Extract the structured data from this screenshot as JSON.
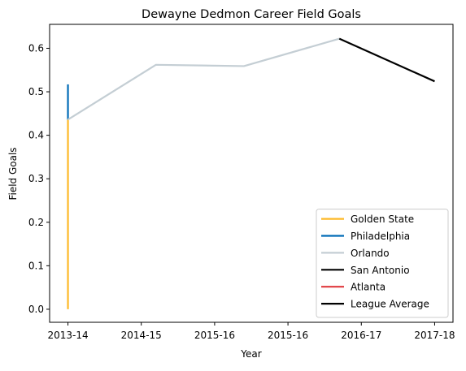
{
  "chart_data": {
    "type": "line",
    "title": "Dewayne Dedmon Career Field Goals",
    "xlabel": "Year",
    "ylabel": "Field Goals",
    "x_ticks": [
      "2013-14",
      "2014-15",
      "2015-16",
      "2015-16",
      "2016-17",
      "2017-18"
    ],
    "y_ticks": [
      "0.0",
      "0.1",
      "0.2",
      "0.3",
      "0.4",
      "0.5",
      "0.6"
    ],
    "xlim": [
      -0.25,
      5.25
    ],
    "ylim": [
      -0.03,
      0.655
    ],
    "grid": false,
    "legend_position": "lower-right",
    "series": [
      {
        "name": "Golden State",
        "color": "#FDB927",
        "points": [
          [
            0,
            0.0
          ],
          [
            0,
            0.436
          ]
        ]
      },
      {
        "name": "Philadelphia",
        "color": "#006BB6",
        "points": [
          [
            0,
            0.436
          ],
          [
            0,
            0.517
          ]
        ]
      },
      {
        "name": "Orlando",
        "color": "#C4CED4",
        "points": [
          [
            0,
            0.436
          ],
          [
            1.2,
            0.562
          ],
          [
            2.4,
            0.559
          ],
          [
            3.7,
            0.622
          ]
        ]
      },
      {
        "name": "San Antonio",
        "color": "#000000",
        "points": [
          [
            3.7,
            0.622
          ],
          [
            5,
            0.524
          ]
        ]
      },
      {
        "name": "Atlanta",
        "color": "#E03A3E",
        "points": []
      },
      {
        "name": "League Average",
        "color": "#000000",
        "points": []
      }
    ]
  }
}
